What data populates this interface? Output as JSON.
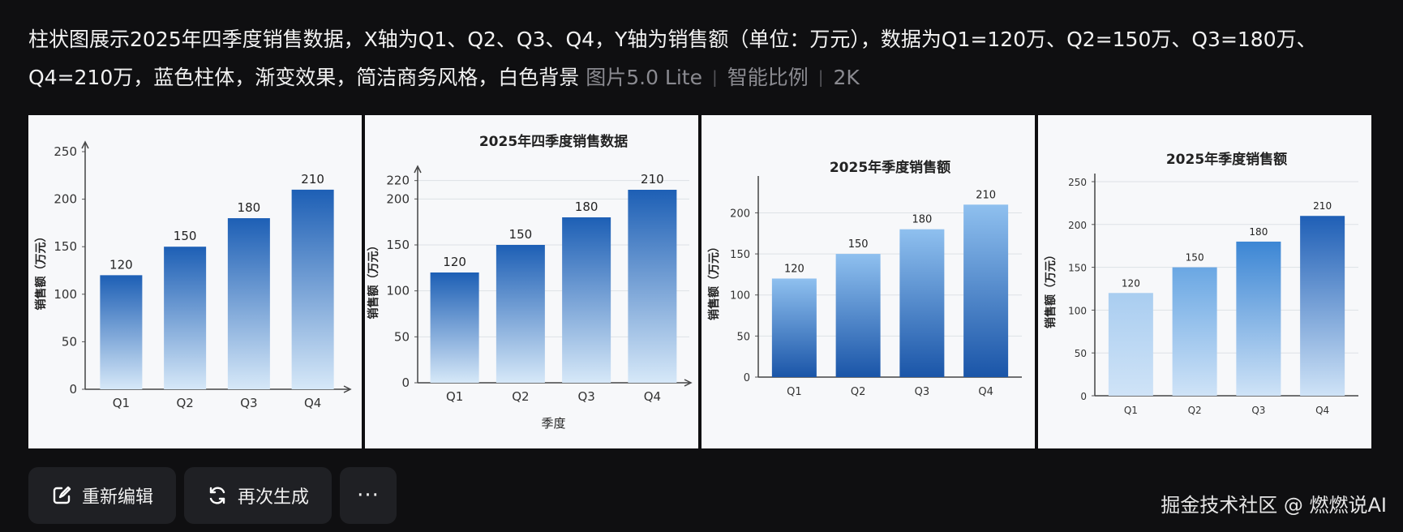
{
  "prompt": {
    "text": "柱状图展示2025年四季度销售数据，X轴为Q1、Q2、Q3、Q4，Y轴为销售额（单位：万元），数据为Q1=120万、Q2=150万、Q3=180万、Q4=210万，蓝色柱体，渐变效果，简洁商务风格，白色背景",
    "model": "图片5.0 Lite",
    "ratio": "智能比例",
    "resolution": "2K"
  },
  "actions": {
    "edit_label": "重新编辑",
    "regenerate_label": "再次生成",
    "more_label": "···"
  },
  "watermark": "掘金技术社区 @ 燃燃说AI",
  "colors": {
    "bar_light": "#d6e8f8",
    "bar_dark": "#1d5fb5",
    "bar_mid": "#3f8ad8"
  },
  "chart_data": [
    {
      "type": "bar",
      "title": "",
      "xlabel": "",
      "ylabel": "销售额（万元）",
      "categories": [
        "Q1",
        "Q2",
        "Q3",
        "Q4"
      ],
      "values": [
        120,
        150,
        180,
        210
      ],
      "ylim": [
        0,
        250
      ],
      "yticks": [
        0,
        50,
        100,
        150,
        200,
        250
      ],
      "data_labels": [
        "120",
        "150",
        "180",
        "210"
      ],
      "grid": false,
      "gradient": "light-bottom"
    },
    {
      "type": "bar",
      "title": "2025年四季度销售数据",
      "xlabel": "季度",
      "ylabel": "销售额（万元）",
      "categories": [
        "Q1",
        "Q2",
        "Q3",
        "Q4"
      ],
      "values": [
        120,
        150,
        180,
        210
      ],
      "ylim": [
        0,
        225
      ],
      "yticks": [
        0,
        50,
        100,
        150,
        200,
        220
      ],
      "data_labels": [
        "120",
        "150",
        "180",
        "210"
      ],
      "grid": true,
      "gradient": "light-bottom"
    },
    {
      "type": "bar",
      "title": "2025年季度销售额",
      "xlabel": "",
      "ylabel": "销售额（万元）",
      "categories": [
        "Q1",
        "Q2",
        "Q3",
        "Q4"
      ],
      "values": [
        120,
        150,
        180,
        210
      ],
      "ylim": [
        0,
        235
      ],
      "yticks": [
        0,
        50,
        100,
        150,
        200
      ],
      "data_labels": [
        "120",
        "150",
        "180",
        "210"
      ],
      "grid": true,
      "gradient": "dark-bottom"
    },
    {
      "type": "bar",
      "title": "2025年季度销售额",
      "xlabel": "",
      "ylabel": "销售额（万元）",
      "categories": [
        "Q1",
        "Q2",
        "Q3",
        "Q4"
      ],
      "values": [
        120,
        150,
        180,
        210
      ],
      "ylim": [
        0,
        250
      ],
      "yticks": [
        0,
        50,
        100,
        150,
        200,
        250
      ],
      "data_labels": [
        "120",
        "150",
        "180",
        "210"
      ],
      "grid": true,
      "gradient": "per-bar"
    }
  ]
}
